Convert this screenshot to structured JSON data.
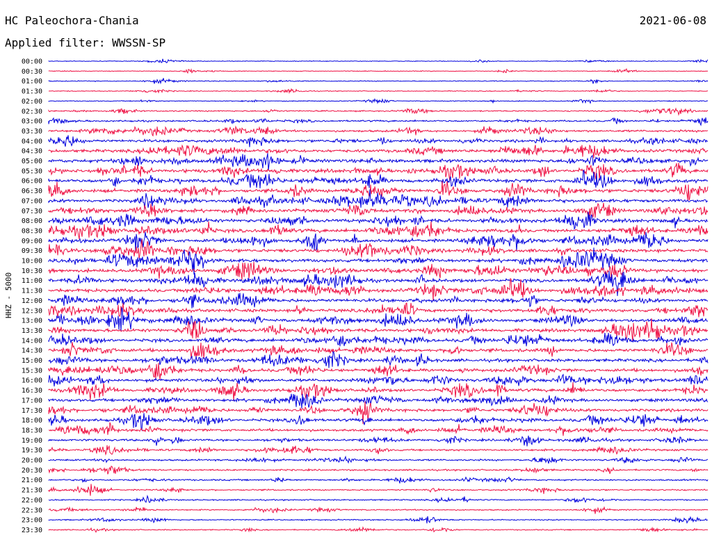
{
  "header": {
    "station": "HC Paleochora-Chania",
    "date": "2021-06-08",
    "filter": "Applied filter: WWSSN-SP"
  },
  "chart_data": {
    "type": "line",
    "title": "HC Paleochora-Chania",
    "ylabel": "HHZ - 5000",
    "tick_labels": [
      "00:00",
      "00:30",
      "01:00",
      "01:30",
      "02:00",
      "02:30",
      "03:00",
      "03:30",
      "04:00",
      "04:30",
      "05:00",
      "05:30",
      "06:00",
      "06:30",
      "07:00",
      "07:30",
      "08:00",
      "08:30",
      "09:00",
      "09:30",
      "10:00",
      "10:30",
      "11:00",
      "11:30",
      "12:00",
      "12:30",
      "13:00",
      "13:30",
      "14:00",
      "14:30",
      "15:00",
      "15:30",
      "16:00",
      "16:30",
      "17:00",
      "17:30",
      "18:00",
      "18:30",
      "19:00",
      "19:30",
      "20:00",
      "20:30",
      "21:00",
      "21:30",
      "22:00",
      "22:30",
      "23:00",
      "23:30"
    ],
    "trace_colors": [
      "#0000dd",
      "#ee1144"
    ],
    "activity": [
      0.05,
      0.08,
      0.1,
      0.08,
      0.12,
      0.25,
      0.4,
      0.55,
      0.7,
      0.85,
      0.95,
      1.0,
      0.95,
      0.95,
      0.9,
      0.9,
      0.95,
      0.95,
      0.95,
      0.95,
      0.95,
      0.95,
      0.95,
      0.95,
      0.9,
      0.9,
      0.9,
      0.9,
      0.9,
      0.9,
      0.85,
      0.85,
      0.85,
      0.85,
      0.8,
      0.8,
      0.75,
      0.65,
      0.55,
      0.45,
      0.4,
      0.35,
      0.35,
      0.3,
      0.25,
      0.22,
      0.2,
      0.18
    ]
  }
}
